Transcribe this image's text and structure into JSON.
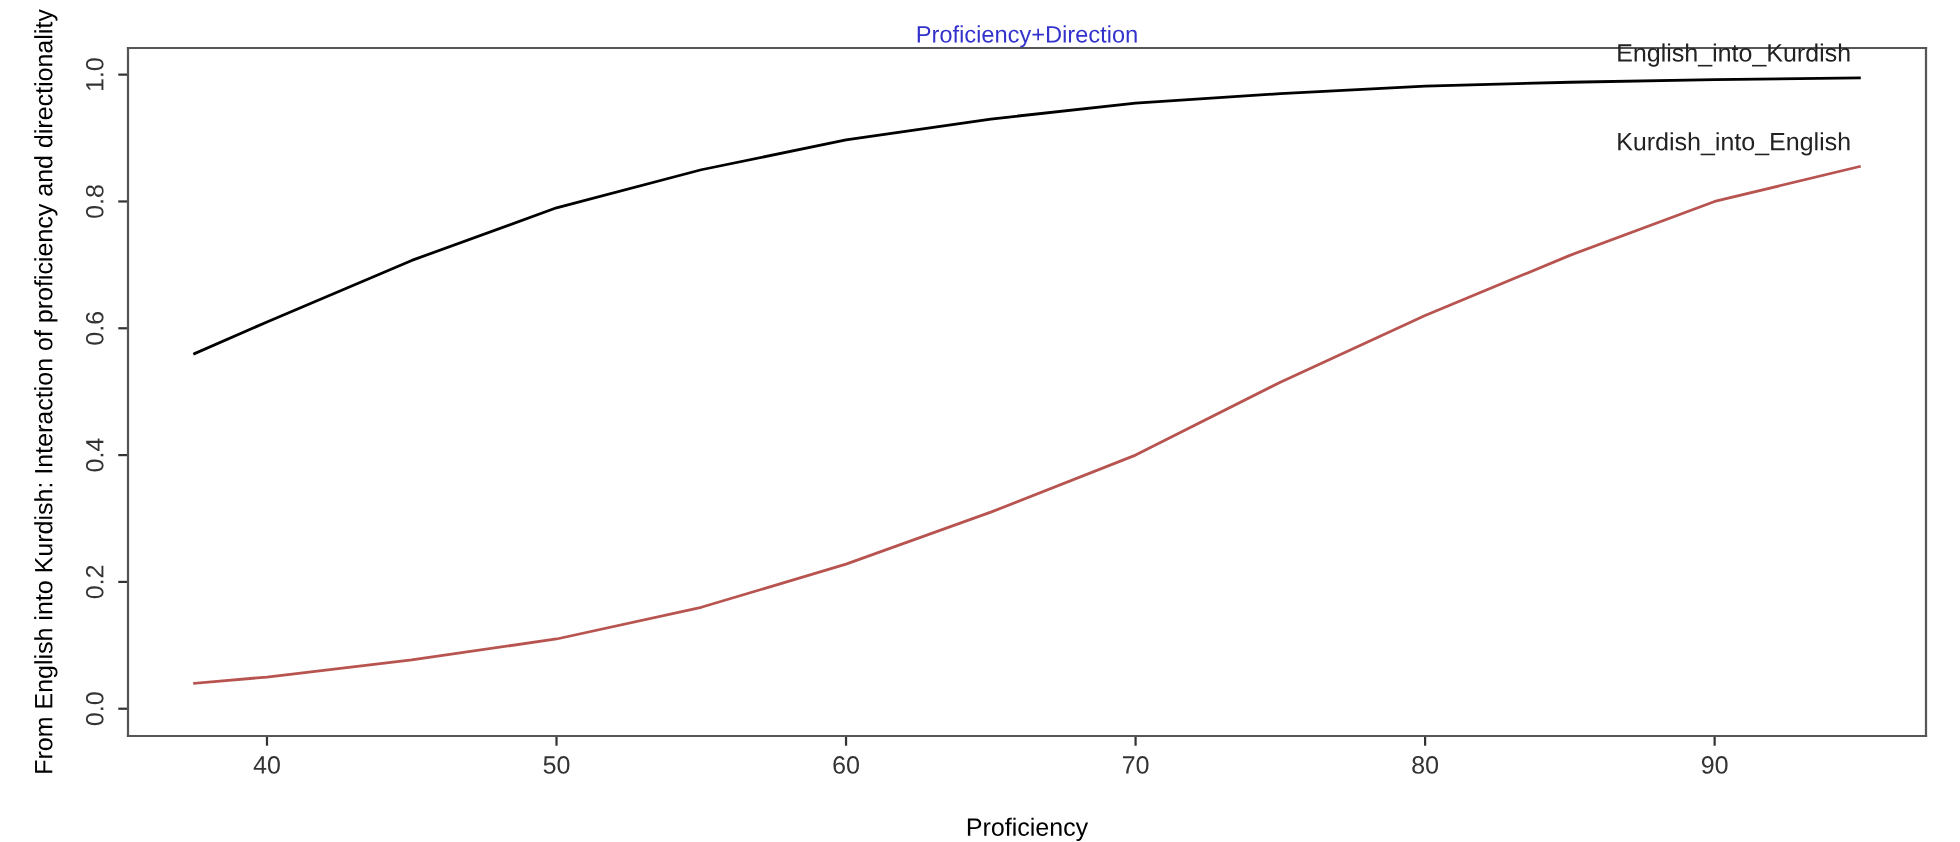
{
  "chart_data": {
    "type": "line",
    "title": "Proficiency+Direction",
    "xlabel": "Proficiency",
    "ylabel": "From English into Kurdish: Interaction of proficiency and directionality",
    "x": [
      37.5,
      40,
      45,
      50,
      55,
      60,
      65,
      70,
      75,
      80,
      85,
      90,
      95
    ],
    "series": [
      {
        "name": "English_into_Kurdish",
        "color": "#000000",
        "values": [
          0.56,
          0.61,
          0.707,
          0.79,
          0.85,
          0.897,
          0.93,
          0.955,
          0.97,
          0.982,
          0.988,
          0.992,
          0.995
        ]
      },
      {
        "name": "Kurdish_into_English",
        "color": "#b85450",
        "values": [
          0.04,
          0.05,
          0.077,
          0.11,
          0.16,
          0.228,
          0.31,
          0.4,
          0.515,
          0.62,
          0.715,
          0.8,
          0.855
        ]
      }
    ],
    "xlim": [
      35.2,
      97.3
    ],
    "ylim": [
      -0.043,
      1.042
    ],
    "xticks": [
      40,
      50,
      60,
      70,
      80,
      90
    ],
    "yticks": [
      {
        "value": 0,
        "label": "0.0"
      },
      {
        "value": 0.2,
        "label": "0.2"
      },
      {
        "value": 0.4,
        "label": "0.4"
      },
      {
        "value": 0.6,
        "label": "0.6"
      },
      {
        "value": 0.8,
        "label": "0.8"
      },
      {
        "value": 1,
        "label": "1.0"
      }
    ],
    "grid": false,
    "legend": false
  }
}
